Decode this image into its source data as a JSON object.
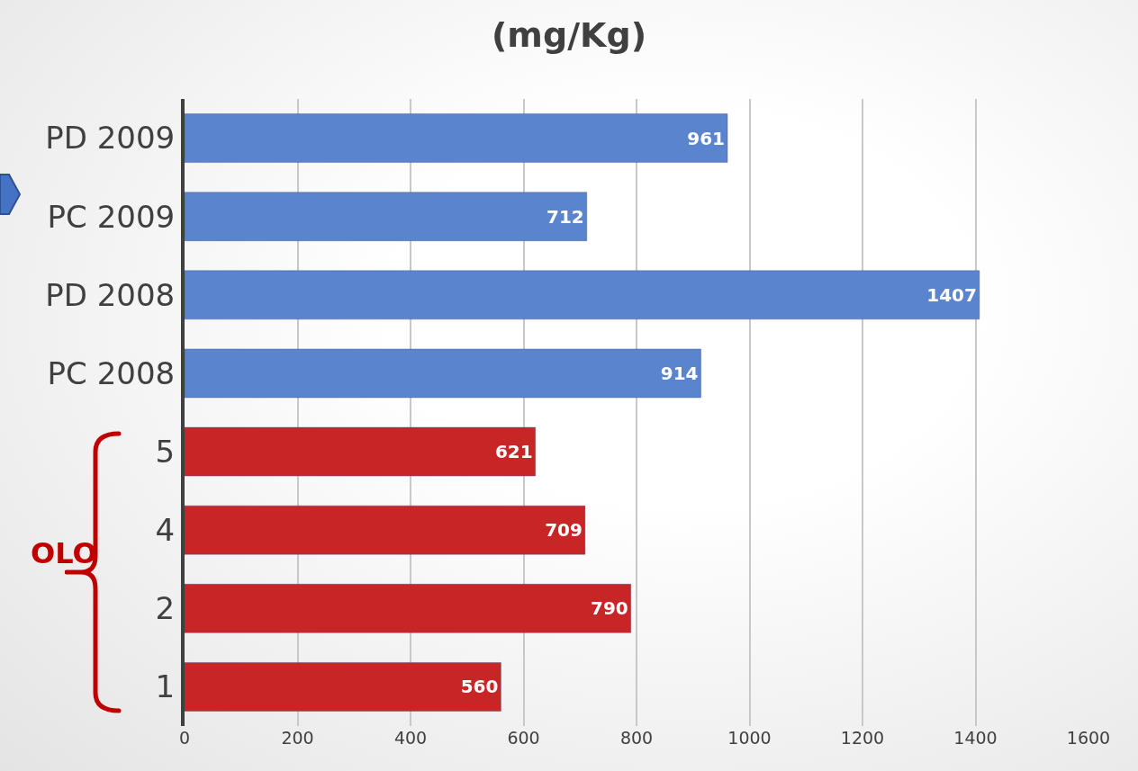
{
  "chart_data": {
    "type": "bar",
    "orientation": "horizontal",
    "title": "(mg/Kg)",
    "categories": [
      "PD 2009",
      "PC 2009",
      "PD 2008",
      "PC 2008",
      "5",
      "4",
      "2",
      "1"
    ],
    "values": [
      961,
      712,
      1407,
      914,
      621,
      709,
      790,
      560
    ],
    "colors": [
      "#5b84cf",
      "#5b84cf",
      "#5b84cf",
      "#5b84cf",
      "#c82527",
      "#c82527",
      "#c82527",
      "#c82527"
    ],
    "xlim": [
      0,
      1600
    ],
    "xticks": [
      0,
      200,
      400,
      600,
      800,
      1000,
      1200,
      1400,
      1600
    ],
    "grid": "x",
    "data_labels": true,
    "legend": false,
    "annotations": [
      "OLO"
    ]
  }
}
